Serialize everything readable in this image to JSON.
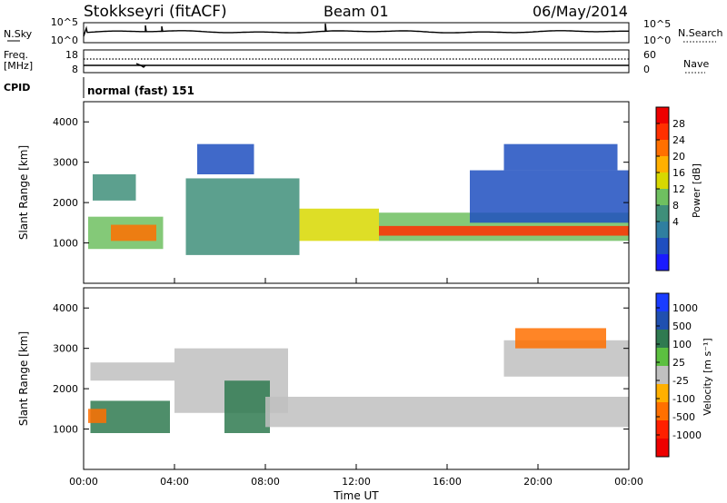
{
  "header": {
    "station": "Stokkseyri (fitACF)",
    "beam": "Beam 01",
    "date": "06/May/2014"
  },
  "top_panels": {
    "nsky": {
      "label": "N.Sky",
      "left_ticks": [
        "10^5",
        "10^0"
      ],
      "right_ticks": [
        "10^5",
        "10^0"
      ],
      "right_label": "N.Search"
    },
    "freq": {
      "label_line1": "Freq.",
      "label_line2": "[MHz]",
      "left_ticks": [
        "18",
        "8"
      ],
      "right_ticks": [
        "60",
        "0"
      ],
      "right_label": "Nave"
    },
    "cpid": {
      "label": "CPID",
      "value": "normal (fast) 151"
    }
  },
  "chart_data": [
    {
      "type": "heatmap",
      "panel": "power",
      "xlabel": "Time UT",
      "ylabel": "Slant Range [km]",
      "xlim": [
        0,
        24
      ],
      "ylim": [
        0,
        4500
      ],
      "y_ticks": [
        "1000",
        "2000",
        "3000",
        "4000"
      ],
      "colorbar_label": "Power [dB]",
      "colorbar_ticks": [
        "28",
        "24",
        "20",
        "16",
        "12",
        "8",
        "4"
      ],
      "colors": [
        "#1a1aff",
        "#1f4fc0",
        "#2f7fa0",
        "#3f8f7a",
        "#6fc060",
        "#d8d800",
        "#ffb000",
        "#ff7000",
        "#ff3000",
        "#ee0000"
      ],
      "bands": [
        {
          "start": 0.2,
          "end": 3.5,
          "low": 850,
          "high": 1650,
          "value": 14
        },
        {
          "start": 0.4,
          "end": 2.3,
          "low": 2050,
          "high": 2700,
          "value": 10
        },
        {
          "start": 1.2,
          "end": 3.2,
          "low": 1050,
          "high": 1450,
          "value": 24
        },
        {
          "start": 4.5,
          "end": 9.5,
          "low": 700,
          "high": 2600,
          "value": 10
        },
        {
          "start": 9.5,
          "end": 13.0,
          "low": 1050,
          "high": 1850,
          "value": 16
        },
        {
          "start": 13.0,
          "end": 24.0,
          "low": 1050,
          "high": 1750,
          "value": 15
        },
        {
          "start": 13.0,
          "end": 24.0,
          "low": 1180,
          "high": 1420,
          "value": 27
        },
        {
          "start": 17.0,
          "end": 24.0,
          "low": 1500,
          "high": 2800,
          "value": 6
        },
        {
          "start": 18.5,
          "end": 23.5,
          "low": 2800,
          "high": 3450,
          "value": 5
        },
        {
          "start": 5.0,
          "end": 7.5,
          "low": 2700,
          "high": 3450,
          "value": 6
        }
      ]
    },
    {
      "type": "heatmap",
      "panel": "velocity",
      "xlabel": "Time UT",
      "ylabel": "Slant Range [km]",
      "xlim": [
        0,
        24
      ],
      "ylim": [
        0,
        4500
      ],
      "x_ticks": [
        "00:00",
        "04:00",
        "08:00",
        "12:00",
        "16:00",
        "20:00",
        "00:00"
      ],
      "y_ticks": [
        "1000",
        "2000",
        "3000",
        "4000"
      ],
      "colorbar_label": "Velocity [m s⁻¹]",
      "colorbar_ticks": [
        "1000",
        "500",
        "100",
        "25",
        "-25",
        "-100",
        "-500",
        "-1000"
      ],
      "colors": [
        "#1a3cff",
        "#2050b0",
        "#2f7a50",
        "#5cc040",
        "#c0c0c0",
        "#ffb000",
        "#ff7000",
        "#ff2000",
        "#ee0000"
      ],
      "bands": [
        {
          "start": 0.3,
          "end": 3.8,
          "low": 900,
          "high": 1700,
          "value": 300
        },
        {
          "start": 0.2,
          "end": 1.0,
          "low": 1150,
          "high": 1500,
          "value": -400
        },
        {
          "start": 0.3,
          "end": 4.0,
          "low": 2200,
          "high": 2650,
          "value": 0
        },
        {
          "start": 4.0,
          "end": 9.0,
          "low": 1400,
          "high": 3000,
          "value": 0
        },
        {
          "start": 6.2,
          "end": 8.2,
          "low": 900,
          "high": 2200,
          "value": 120
        },
        {
          "start": 8.0,
          "end": 24.0,
          "low": 1050,
          "high": 1800,
          "value": 0
        },
        {
          "start": 18.5,
          "end": 24.0,
          "low": 2300,
          "high": 3200,
          "value": 0
        },
        {
          "start": 19.0,
          "end": 23.0,
          "low": 3000,
          "high": 3500,
          "value": -150
        }
      ]
    }
  ]
}
